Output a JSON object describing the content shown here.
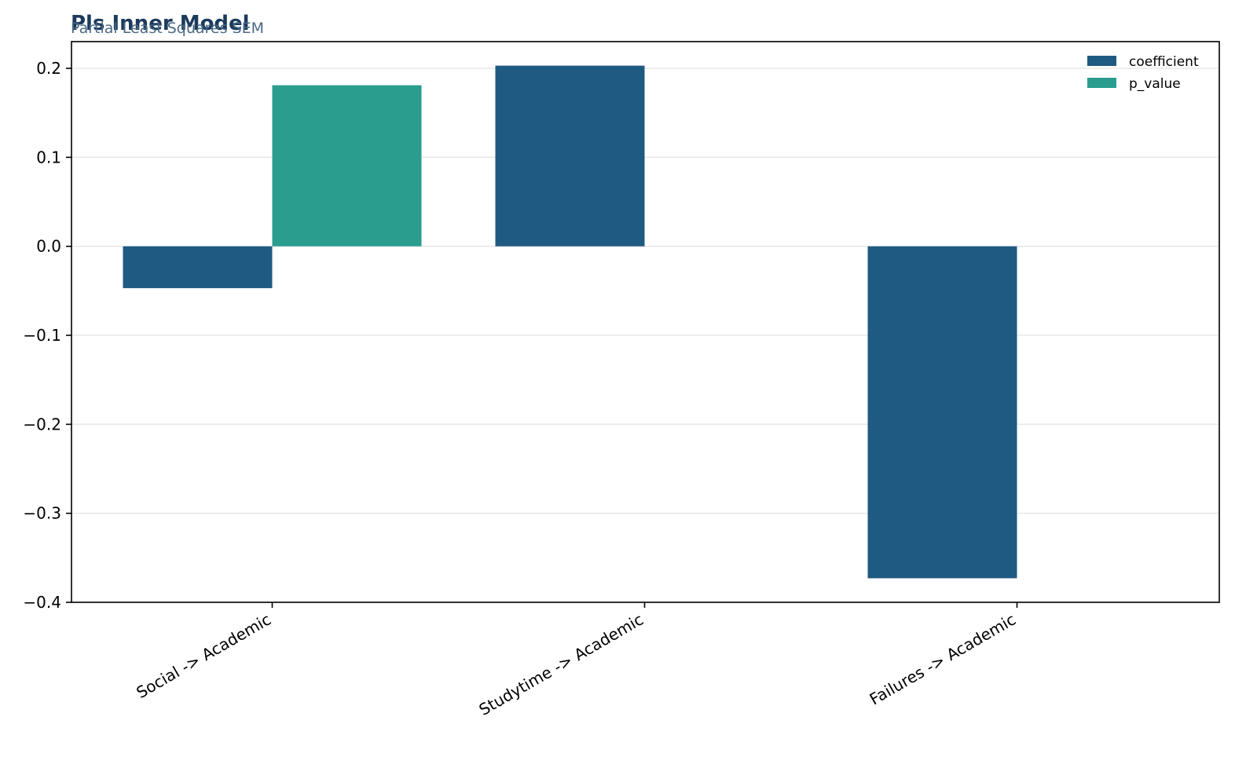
{
  "chart_data": {
    "type": "bar",
    "title": "Pls Inner Model",
    "subtitle": "Partial Least Squares SEM",
    "categories": [
      "Social -> Academic",
      "Studytime -> Academic",
      "Failures -> Academic"
    ],
    "series": [
      {
        "name": "coefficient",
        "color": "#1f5a82",
        "values": [
          -0.047,
          0.203,
          -0.373
        ]
      },
      {
        "name": "p_value",
        "color": "#2a9d8f",
        "values": [
          0.181,
          0.0,
          0.0
        ]
      }
    ],
    "ylim": [
      -0.4,
      0.23
    ],
    "yticks": [
      0.2,
      0.1,
      0.0,
      -0.1,
      -0.2,
      -0.3,
      -0.4
    ],
    "ytick_labels": [
      "0.2",
      "0.1",
      "0.0",
      "−0.1",
      "−0.2",
      "−0.3",
      "−0.4"
    ],
    "xlabel": "",
    "ylabel": "",
    "grid": "horizontal",
    "legend_position": "top-right",
    "colors": {
      "title": "#1b3a5c",
      "subtitle": "#4a6a85",
      "grid": "#e8e8e8",
      "axis": "#000000"
    }
  }
}
